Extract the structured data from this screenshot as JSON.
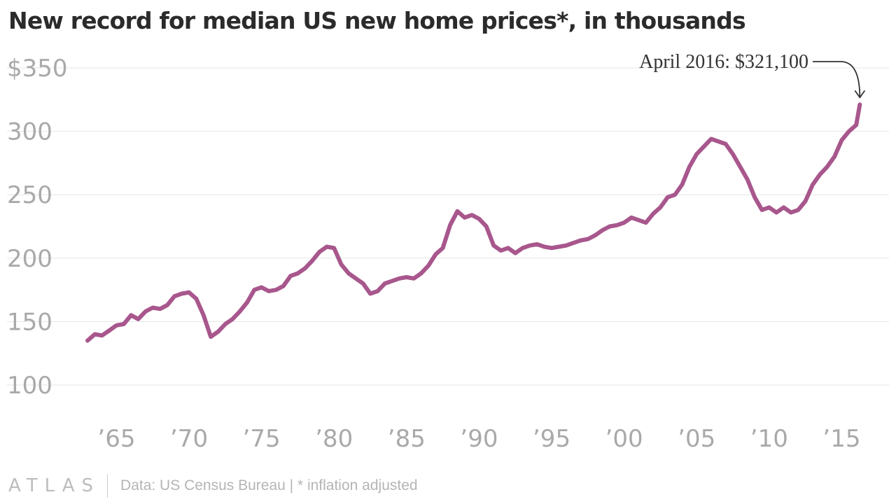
{
  "header": {
    "title": "New record for median US new home prices*, in thousands"
  },
  "footer": {
    "brand": "ATLAS",
    "source": "Data: US Census Bureau | * inflation adjusted"
  },
  "colors": {
    "line": "#a8578d",
    "grid": "#e6e6e6",
    "tick_text": "#a9a9a9",
    "annotation_text": "#333333"
  },
  "chart_data": {
    "type": "line",
    "title": "New record for median US new home prices*, in thousands",
    "xlabel": "",
    "ylabel": "",
    "x_range": [
      1963.0,
      2016.33
    ],
    "ylim": [
      100,
      350
    ],
    "grid": "horizontal",
    "y_ticks": [
      {
        "value": 350,
        "label": "$350"
      },
      {
        "value": 300,
        "label": "300"
      },
      {
        "value": 250,
        "label": "250"
      },
      {
        "value": 200,
        "label": "200"
      },
      {
        "value": 150,
        "label": "150"
      },
      {
        "value": 100,
        "label": "100"
      }
    ],
    "x_ticks": [
      {
        "value": 1965,
        "label": "’65"
      },
      {
        "value": 1970,
        "label": "’70"
      },
      {
        "value": 1975,
        "label": "’75"
      },
      {
        "value": 1980,
        "label": "’80"
      },
      {
        "value": 1985,
        "label": "’85"
      },
      {
        "value": 1990,
        "label": "’90"
      },
      {
        "value": 1995,
        "label": "’95"
      },
      {
        "value": 2000,
        "label": "’00"
      },
      {
        "value": 2005,
        "label": "’05"
      },
      {
        "value": 2010,
        "label": "’10"
      },
      {
        "value": 2015,
        "label": "’15"
      }
    ],
    "series": [
      {
        "name": "",
        "points": [
          [
            1963.0,
            135
          ],
          [
            1963.5,
            140
          ],
          [
            1964.0,
            139
          ],
          [
            1964.5,
            143
          ],
          [
            1965.0,
            147
          ],
          [
            1965.5,
            148
          ],
          [
            1966.0,
            155
          ],
          [
            1966.5,
            152
          ],
          [
            1967.0,
            158
          ],
          [
            1967.5,
            161
          ],
          [
            1968.0,
            160
          ],
          [
            1968.5,
            163
          ],
          [
            1969.0,
            170
          ],
          [
            1969.5,
            172
          ],
          [
            1970.0,
            173
          ],
          [
            1970.5,
            168
          ],
          [
            1971.0,
            155
          ],
          [
            1971.5,
            138
          ],
          [
            1972.0,
            142
          ],
          [
            1972.5,
            148
          ],
          [
            1973.0,
            152
          ],
          [
            1973.5,
            158
          ],
          [
            1974.0,
            165
          ],
          [
            1974.5,
            175
          ],
          [
            1975.0,
            177
          ],
          [
            1975.5,
            174
          ],
          [
            1976.0,
            175
          ],
          [
            1976.5,
            178
          ],
          [
            1977.0,
            186
          ],
          [
            1977.5,
            188
          ],
          [
            1978.0,
            192
          ],
          [
            1978.5,
            198
          ],
          [
            1979.0,
            205
          ],
          [
            1979.5,
            209
          ],
          [
            1980.0,
            208
          ],
          [
            1980.5,
            195
          ],
          [
            1981.0,
            188
          ],
          [
            1981.5,
            184
          ],
          [
            1982.0,
            180
          ],
          [
            1982.5,
            172
          ],
          [
            1983.0,
            174
          ],
          [
            1983.5,
            180
          ],
          [
            1984.0,
            182
          ],
          [
            1984.5,
            184
          ],
          [
            1985.0,
            185
          ],
          [
            1985.5,
            184
          ],
          [
            1986.0,
            188
          ],
          [
            1986.5,
            194
          ],
          [
            1987.0,
            203
          ],
          [
            1987.5,
            208
          ],
          [
            1988.0,
            226
          ],
          [
            1988.5,
            237
          ],
          [
            1989.0,
            232
          ],
          [
            1989.5,
            234
          ],
          [
            1990.0,
            231
          ],
          [
            1990.5,
            225
          ],
          [
            1991.0,
            210
          ],
          [
            1991.5,
            206
          ],
          [
            1992.0,
            208
          ],
          [
            1992.5,
            204
          ],
          [
            1993.0,
            208
          ],
          [
            1993.5,
            210
          ],
          [
            1994.0,
            211
          ],
          [
            1994.5,
            209
          ],
          [
            1995.0,
            208
          ],
          [
            1995.5,
            209
          ],
          [
            1996.0,
            210
          ],
          [
            1996.5,
            212
          ],
          [
            1997.0,
            214
          ],
          [
            1997.5,
            215
          ],
          [
            1998.0,
            218
          ],
          [
            1998.5,
            222
          ],
          [
            1999.0,
            225
          ],
          [
            1999.5,
            226
          ],
          [
            2000.0,
            228
          ],
          [
            2000.5,
            232
          ],
          [
            2001.0,
            230
          ],
          [
            2001.5,
            228
          ],
          [
            2002.0,
            235
          ],
          [
            2002.5,
            240
          ],
          [
            2003.0,
            248
          ],
          [
            2003.5,
            250
          ],
          [
            2004.0,
            258
          ],
          [
            2004.5,
            272
          ],
          [
            2005.0,
            282
          ],
          [
            2005.5,
            288
          ],
          [
            2006.0,
            294
          ],
          [
            2006.5,
            292
          ],
          [
            2007.0,
            290
          ],
          [
            2007.5,
            282
          ],
          [
            2008.0,
            272
          ],
          [
            2008.5,
            262
          ],
          [
            2009.0,
            248
          ],
          [
            2009.5,
            238
          ],
          [
            2010.0,
            240
          ],
          [
            2010.5,
            236
          ],
          [
            2011.0,
            240
          ],
          [
            2011.5,
            236
          ],
          [
            2012.0,
            238
          ],
          [
            2012.5,
            245
          ],
          [
            2013.0,
            258
          ],
          [
            2013.5,
            266
          ],
          [
            2014.0,
            272
          ],
          [
            2014.5,
            280
          ],
          [
            2015.0,
            293
          ],
          [
            2015.5,
            300
          ],
          [
            2016.0,
            305
          ],
          [
            2016.25,
            321.1
          ]
        ]
      }
    ],
    "annotations": [
      {
        "text": "April 2016: $321,100",
        "x": 2016.25,
        "y": 321.1
      }
    ]
  }
}
